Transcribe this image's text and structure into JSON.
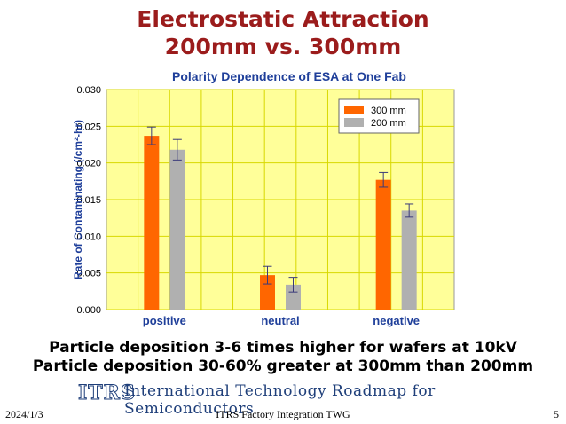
{
  "slide": {
    "title_line1": "Electrostatic Attraction",
    "title_line2": "200mm vs. 300mm",
    "bullets": [
      "Particle deposition 3-6 times higher for wafers at 10kV",
      "Particle deposition 30-60% greater at 300mm than 200mm"
    ],
    "banner": {
      "logo": "ITRS",
      "text": "International Technology Roadmap for Semiconductors"
    },
    "footer": {
      "date": "2024/1/3",
      "center": "ITRS Factory Integration TWG",
      "page": "5"
    }
  },
  "colors": {
    "title": "#9b1c1c",
    "chart_title": "#1f3f9a",
    "plot_background": "#ffff99",
    "grid": "#d8d800",
    "series_300": "#ff6600",
    "series_200": "#b0b0b0",
    "category_labels": "#1f3f9a",
    "error_bars": "#3a3a7a"
  },
  "chart_data": {
    "type": "bar",
    "title": "Polarity Dependence of ESA at One Fab",
    "xlabel": "",
    "ylabel": "Rate of Contaminating (/cm²-hr)",
    "ylim": [
      0,
      0.03
    ],
    "yticks": [
      "0.000",
      "0.005",
      "0.010",
      "0.015",
      "0.020",
      "0.025",
      "0.030"
    ],
    "ytick_values": [
      0,
      0.005,
      0.01,
      0.015,
      0.02,
      0.025,
      0.03
    ],
    "categories": [
      "positive",
      "neutral",
      "negative"
    ],
    "series": [
      {
        "name": "300 mm",
        "values": [
          0.0237,
          0.0047,
          0.0177
        ],
        "errors": [
          0.0012,
          0.0012,
          0.001
        ]
      },
      {
        "name": "200 mm",
        "values": [
          0.0218,
          0.0034,
          0.0135
        ],
        "errors": [
          0.0014,
          0.001,
          0.0009
        ]
      }
    ],
    "grid": true,
    "legend_position": "top-right"
  }
}
